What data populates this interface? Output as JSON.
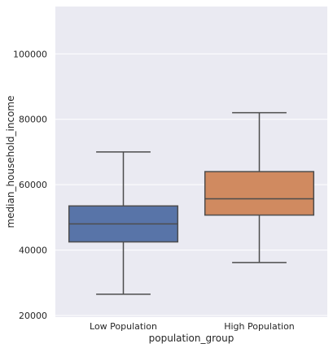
{
  "chart_data": {
    "type": "box",
    "title": "",
    "xlabel": "population_group",
    "ylabel": "median_household_income",
    "ylim": [
      19500,
      114500
    ],
    "yticks": [
      20000,
      40000,
      60000,
      80000,
      100000
    ],
    "ytick_labels": [
      "20000",
      "40000",
      "60000",
      "80000",
      "100000"
    ],
    "grid": true,
    "categories": [
      "Low Population",
      "High Population"
    ],
    "boxes": [
      {
        "category": "Low Population",
        "whisker_low": 26500,
        "q1": 42500,
        "median": 48000,
        "q3": 53500,
        "whisker_high": 70000,
        "color": "#5874a8"
      },
      {
        "category": "High Population",
        "whisker_low": 36200,
        "q1": 50700,
        "median": 55700,
        "q3": 64000,
        "whisker_high": 82000,
        "color": "#d08a60"
      }
    ],
    "background_color": "#eaeaf2",
    "line_color": "#4d4d4d"
  }
}
